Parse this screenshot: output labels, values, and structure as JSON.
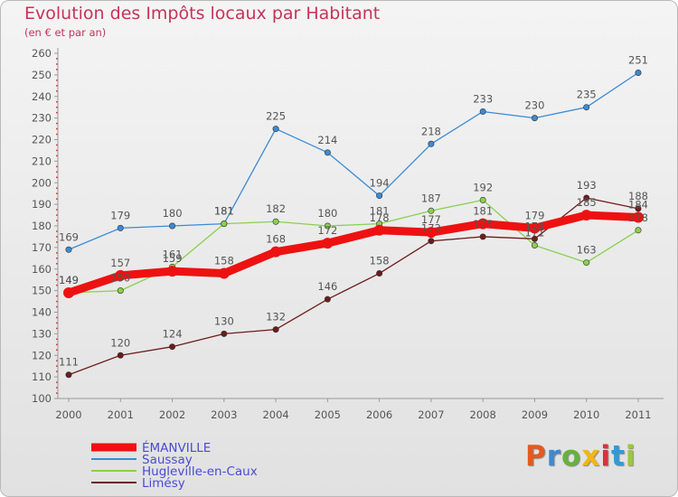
{
  "header": {
    "title": "Evolution des Impôts locaux par Habitant",
    "subtitle": "(en € et par an)"
  },
  "logo": {
    "text": "Proxiti",
    "colors": [
      "#e4591e",
      "#3d8ad4",
      "#66b23a",
      "#f1b617",
      "#d6333d",
      "#2e9bd8",
      "#9bc93b"
    ]
  },
  "chart_data": {
    "type": "line",
    "x": [
      "2000",
      "2001",
      "2002",
      "2003",
      "2004",
      "2005",
      "2006",
      "2007",
      "2008",
      "2009",
      "2010",
      "2011"
    ],
    "ylim": [
      100,
      260
    ],
    "yticks": [
      100,
      110,
      120,
      130,
      140,
      150,
      160,
      170,
      180,
      190,
      200,
      210,
      220,
      230,
      240,
      250,
      260
    ],
    "grid": false,
    "legend_position": "bottom-left",
    "series": [
      {
        "name": "ÉMANVILLE",
        "color": "#ee1111",
        "values": [
          149,
          157,
          159,
          158,
          168,
          172,
          178,
          177,
          181,
          179,
          185,
          184
        ]
      },
      {
        "name": "Saussay",
        "color": "#3d8ad4",
        "values": [
          169,
          179,
          180,
          181,
          225,
          214,
          194,
          218,
          233,
          230,
          235,
          251
        ]
      },
      {
        "name": "Hugleville-en-Caux",
        "color": "#8ad04d",
        "values": [
          149,
          150,
          161,
          181,
          182,
          180,
          181,
          187,
          192,
          171,
          163,
          178
        ]
      },
      {
        "name": "Limésy",
        "color": "#6e1c1c",
        "values": [
          111,
          120,
          124,
          130,
          132,
          146,
          158,
          173,
          175,
          174,
          193,
          188
        ]
      }
    ]
  }
}
